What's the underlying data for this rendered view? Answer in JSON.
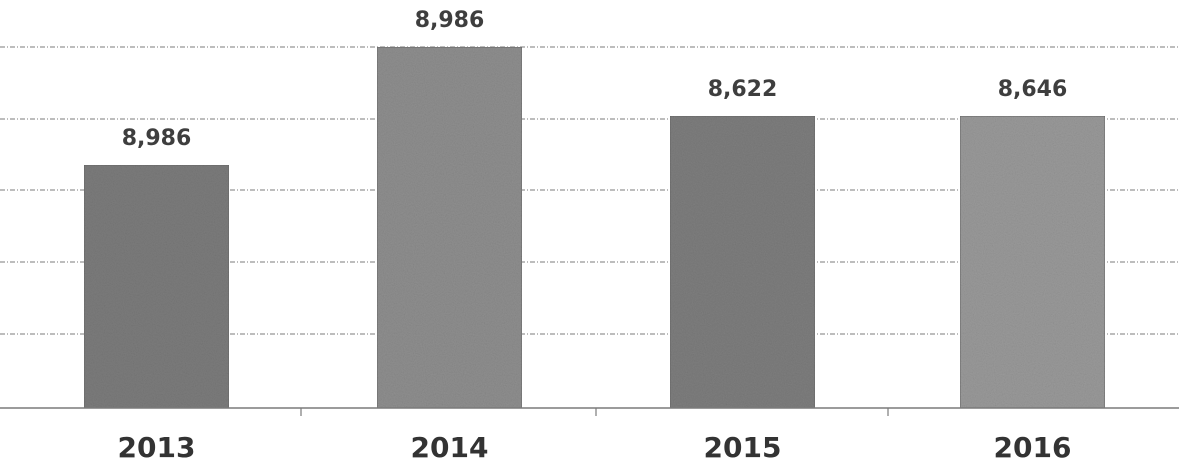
{
  "chart_data": {
    "type": "bar",
    "title": "",
    "xlabel": "",
    "ylabel": "",
    "categories": [
      "2013",
      "2014",
      "2015",
      "2016"
    ],
    "values": [
      8986,
      8986,
      8622,
      8646
    ],
    "value_labels": [
      "8,986",
      "8,986",
      "8,622",
      "8,646"
    ],
    "grid": true,
    "legend": "none",
    "colors": [
      "#7c7c7c",
      "#8f8f8f",
      "#7e7e7e",
      "#9a9a9a"
    ]
  }
}
